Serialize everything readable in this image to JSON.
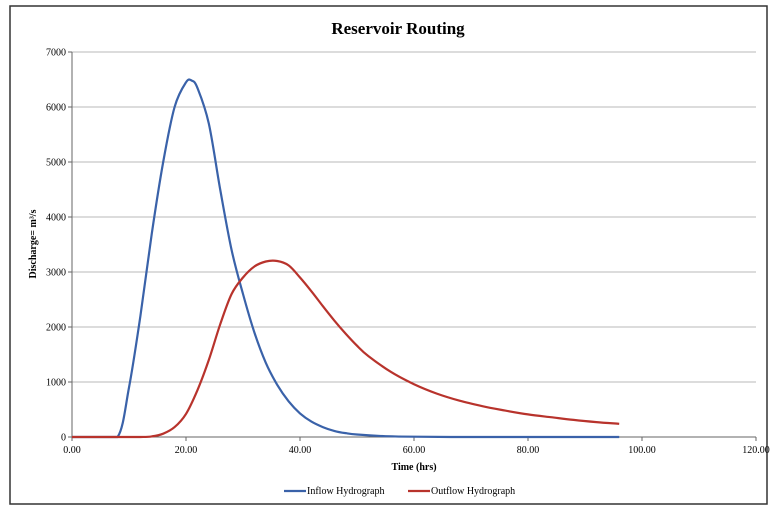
{
  "chart_data": {
    "type": "line",
    "title": "Reservoir Routing",
    "xlabel": "Time (hrs)",
    "ylabel": "Discharge",
    "ylabel_unit": "m³/s",
    "xlim": [
      0,
      120
    ],
    "ylim": [
      0,
      7000
    ],
    "x_ticks": [
      0,
      20,
      40,
      60,
      80,
      100,
      120
    ],
    "x_tick_labels": [
      "0.00",
      "20.00",
      "40.00",
      "60.00",
      "80.00",
      "100.00",
      "120.00"
    ],
    "y_ticks": [
      0,
      1000,
      2000,
      3000,
      4000,
      5000,
      6000,
      7000
    ],
    "y_tick_labels": [
      "0",
      "1000",
      "2000",
      "3000",
      "4000",
      "5000",
      "6000",
      "7000"
    ],
    "grid": "horizontal",
    "legend_position": "bottom",
    "series": [
      {
        "name": "Inflow Hydrograph",
        "color": "#3a62a9",
        "points": [
          [
            0,
            0
          ],
          [
            4,
            0
          ],
          [
            8,
            0
          ],
          [
            10,
            900
          ],
          [
            12,
            2200
          ],
          [
            14,
            3700
          ],
          [
            16,
            5000
          ],
          [
            18,
            6000
          ],
          [
            20,
            6450
          ],
          [
            21,
            6480
          ],
          [
            22,
            6350
          ],
          [
            24,
            5700
          ],
          [
            26,
            4500
          ],
          [
            28,
            3400
          ],
          [
            30,
            2600
          ],
          [
            32,
            1900
          ],
          [
            34,
            1350
          ],
          [
            36,
            950
          ],
          [
            38,
            650
          ],
          [
            40,
            430
          ],
          [
            42,
            280
          ],
          [
            44,
            180
          ],
          [
            46,
            110
          ],
          [
            48,
            70
          ],
          [
            50,
            45
          ],
          [
            55,
            15
          ],
          [
            60,
            5
          ],
          [
            70,
            0
          ],
          [
            80,
            0
          ],
          [
            96,
            0
          ]
        ]
      },
      {
        "name": "Outflow Hydrograph",
        "color": "#b8332c",
        "points": [
          [
            0,
            0
          ],
          [
            8,
            0
          ],
          [
            12,
            0
          ],
          [
            14,
            10
          ],
          [
            16,
            60
          ],
          [
            18,
            180
          ],
          [
            20,
            420
          ],
          [
            22,
            850
          ],
          [
            24,
            1400
          ],
          [
            26,
            2050
          ],
          [
            28,
            2600
          ],
          [
            30,
            2900
          ],
          [
            32,
            3100
          ],
          [
            34,
            3190
          ],
          [
            36,
            3200
          ],
          [
            38,
            3120
          ],
          [
            40,
            2900
          ],
          [
            42,
            2650
          ],
          [
            44,
            2380
          ],
          [
            46,
            2120
          ],
          [
            48,
            1880
          ],
          [
            50,
            1660
          ],
          [
            52,
            1470
          ],
          [
            56,
            1180
          ],
          [
            60,
            960
          ],
          [
            64,
            790
          ],
          [
            68,
            660
          ],
          [
            72,
            560
          ],
          [
            76,
            480
          ],
          [
            80,
            410
          ],
          [
            84,
            360
          ],
          [
            88,
            310
          ],
          [
            92,
            270
          ],
          [
            96,
            240
          ]
        ]
      }
    ]
  }
}
